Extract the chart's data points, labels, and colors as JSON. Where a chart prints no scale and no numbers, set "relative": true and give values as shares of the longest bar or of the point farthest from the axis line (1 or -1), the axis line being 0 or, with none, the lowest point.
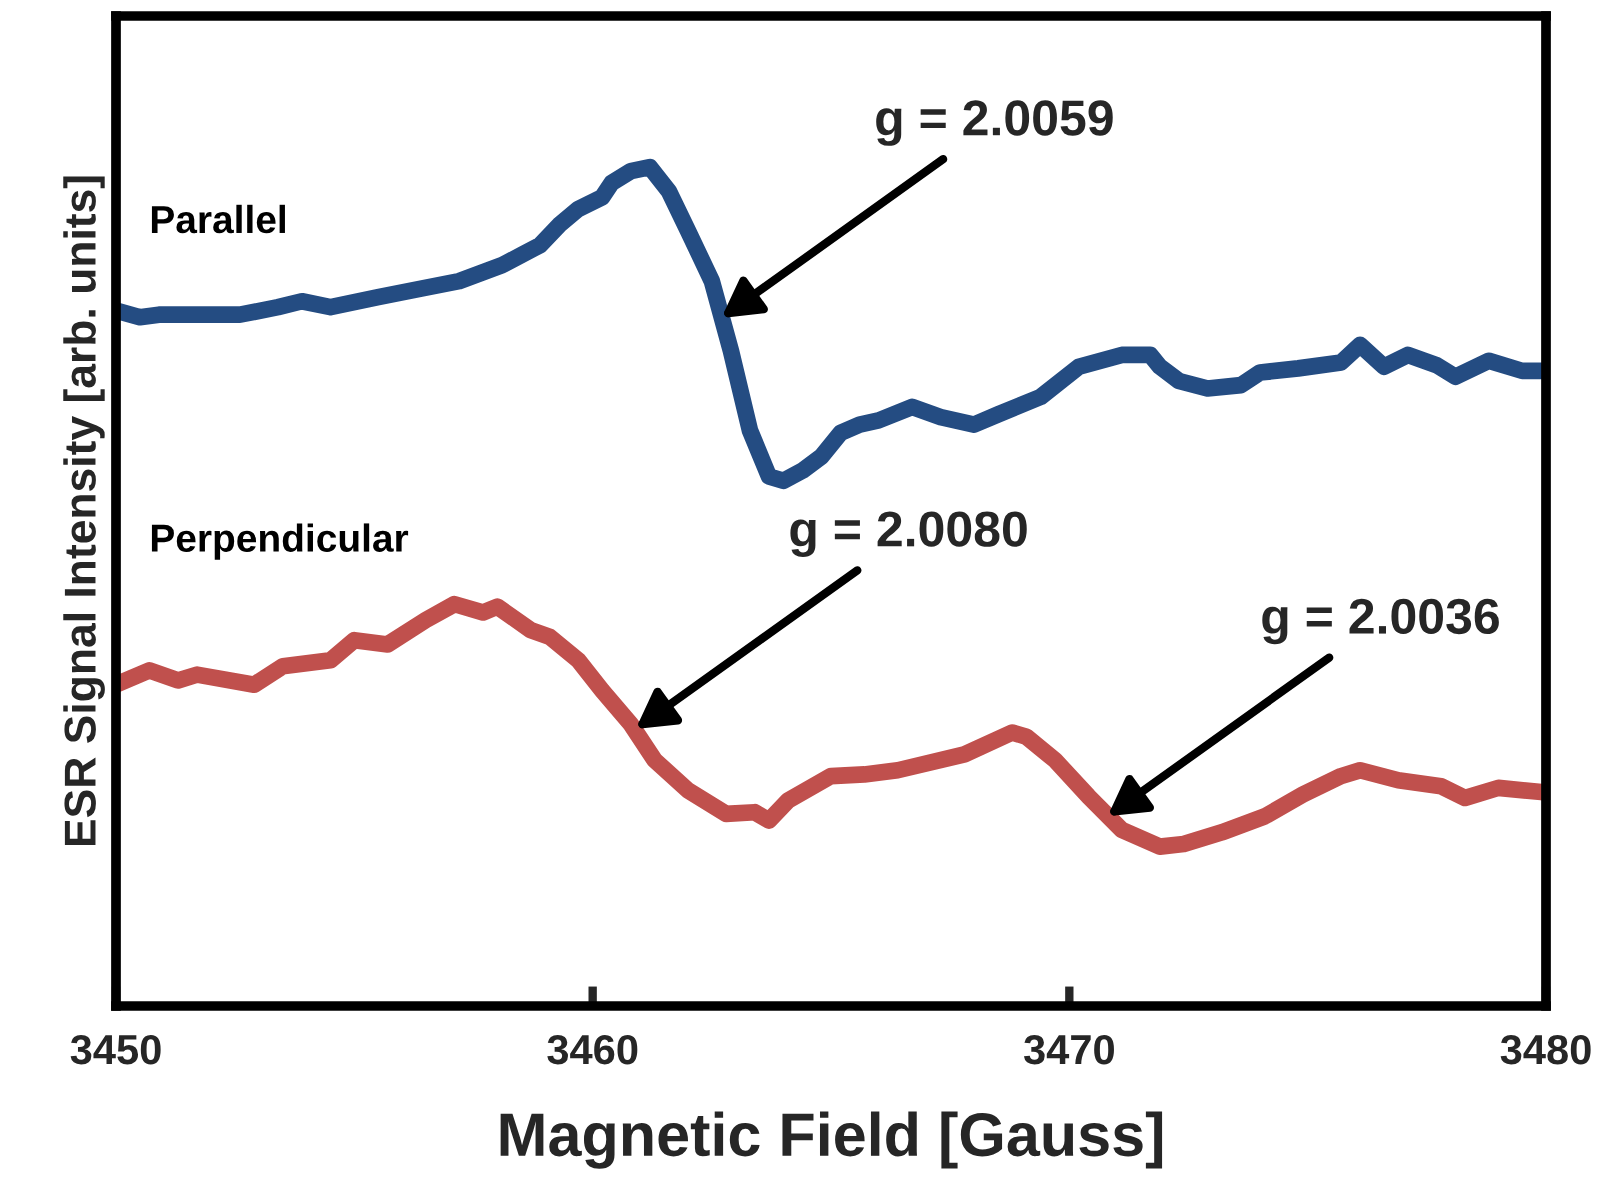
{
  "chart_data": {
    "type": "line",
    "relative": true,
    "xlabel": "Magnetic Field [Gauss]",
    "ylabel": "ESR Signal Intensity [arb. units]",
    "xlim": [
      3450,
      3480
    ],
    "xticks": [
      3450,
      3460,
      3470,
      3480
    ],
    "grid": false,
    "legend": false,
    "marker": "none",
    "line_style": "solid",
    "tick_labels": "x",
    "series": [
      {
        "name": "Parallel",
        "color": "#244c82",
        "x": [
          3450.0,
          3450.5,
          3450.9,
          3451.8,
          3452.6,
          3453.4,
          3453.9,
          3454.5,
          3455.5,
          3456.4,
          3457.2,
          3458.1,
          3458.5,
          3458.9,
          3459.3,
          3459.7,
          3460.2,
          3460.4,
          3460.8,
          3461.2,
          3461.6,
          3462.0,
          3462.5,
          3462.9,
          3463.3,
          3463.7,
          3464.0,
          3464.4,
          3464.8,
          3465.2,
          3465.6,
          3466.0,
          3466.7,
          3467.3,
          3468.0,
          3468.5,
          3469.4,
          3470.2,
          3471.1,
          3471.7,
          3471.9,
          3472.3,
          3472.9,
          3473.6,
          3474.0,
          3474.8,
          3475.7,
          3476.1,
          3476.6,
          3477.1,
          3477.7,
          3478.1,
          3478.8,
          3479.5,
          3480.0
        ],
        "values": [
          0.829,
          0.821,
          0.824,
          0.824,
          0.824,
          0.833,
          0.84,
          0.833,
          0.845,
          0.855,
          0.864,
          0.883,
          0.895,
          0.907,
          0.931,
          0.95,
          0.964,
          0.981,
          0.995,
          1.0,
          0.971,
          0.924,
          0.864,
          0.781,
          0.686,
          0.631,
          0.626,
          0.638,
          0.655,
          0.683,
          0.693,
          0.698,
          0.714,
          0.702,
          0.693,
          0.705,
          0.726,
          0.762,
          0.776,
          0.776,
          0.762,
          0.745,
          0.736,
          0.74,
          0.755,
          0.76,
          0.767,
          0.788,
          0.762,
          0.776,
          0.764,
          0.75,
          0.769,
          0.757,
          0.757
        ]
      },
      {
        "name": "Perpendicular",
        "color": "#c0504d",
        "x": [
          3450.0,
          3450.7,
          3451.3,
          3451.7,
          3452.9,
          3453.5,
          3454.5,
          3455.0,
          3455.7,
          3456.5,
          3457.1,
          3457.7,
          3458.0,
          3458.7,
          3459.1,
          3459.7,
          3460.2,
          3460.8,
          3461.3,
          3462.0,
          3462.8,
          3463.4,
          3463.7,
          3464.1,
          3465.0,
          3465.7,
          3466.4,
          3467.8,
          3468.8,
          3469.1,
          3469.7,
          3470.4,
          3471.1,
          3471.9,
          3472.4,
          3473.2,
          3474.1,
          3474.9,
          3475.7,
          3476.1,
          3476.9,
          3477.8,
          3478.3,
          3479.0,
          3479.9
        ],
        "values": [
          0.383,
          0.4,
          0.388,
          0.395,
          0.383,
          0.405,
          0.412,
          0.436,
          0.431,
          0.46,
          0.479,
          0.469,
          0.476,
          0.448,
          0.44,
          0.412,
          0.376,
          0.336,
          0.293,
          0.257,
          0.229,
          0.231,
          0.221,
          0.245,
          0.274,
          0.276,
          0.281,
          0.3,
          0.326,
          0.321,
          0.293,
          0.25,
          0.21,
          0.19,
          0.193,
          0.207,
          0.226,
          0.252,
          0.274,
          0.281,
          0.269,
          0.262,
          0.248,
          0.26,
          0.255
        ]
      }
    ],
    "annotations": [
      {
        "text": "g = 2.0059",
        "x": 3462.7,
        "y": 0.82
      },
      {
        "text": "g = 2.0080",
        "x": 3460.9,
        "y": 0.33
      },
      {
        "text": "g = 2.0036",
        "x": 3470.8,
        "y": 0.226
      }
    ]
  }
}
